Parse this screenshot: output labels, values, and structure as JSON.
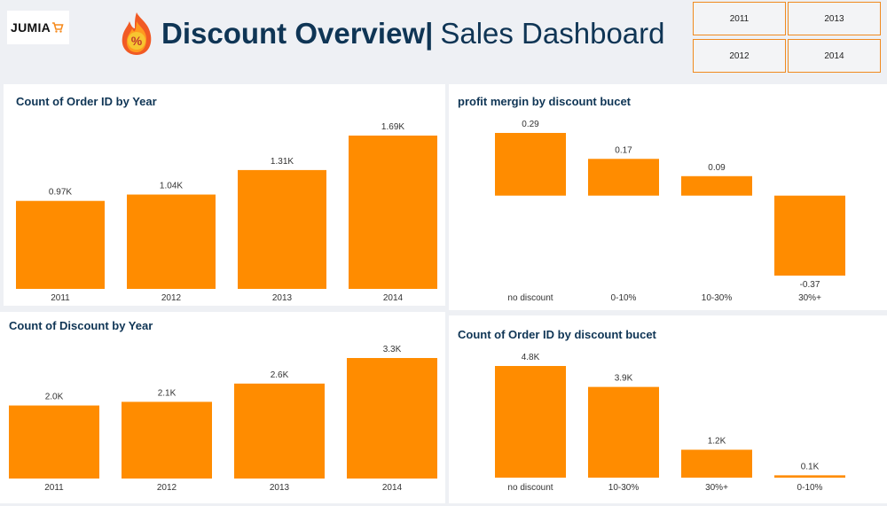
{
  "header": {
    "logo_text": "JUMIA",
    "title_main": "Discount Overview|",
    "title_sub": "Sales Dashboard"
  },
  "slicer": {
    "options": [
      "2011",
      "2013",
      "2012",
      "2014"
    ]
  },
  "colors": {
    "bar": "#ff8c00",
    "title": "#0f3555",
    "slicer_border": "#f08a1f"
  },
  "chart_data": [
    {
      "type": "bar",
      "title": "Count of Order ID by Year",
      "categories": [
        "2011",
        "2012",
        "2013",
        "2014"
      ],
      "values": [
        0.97,
        1.04,
        1.31,
        1.69
      ],
      "labels": [
        "0.97K",
        "1.04K",
        "1.31K",
        "1.69K"
      ],
      "ylim": [
        0,
        1.69
      ]
    },
    {
      "type": "bar",
      "title": "profit mergin by discount bucet",
      "categories": [
        "no discount",
        "0-10%",
        "10-30%",
        "30%+"
      ],
      "values": [
        0.29,
        0.17,
        0.09,
        -0.37
      ],
      "labels": [
        "0.29",
        "0.17",
        "0.09",
        "-0.37"
      ],
      "ylim": [
        -0.37,
        0.29
      ]
    },
    {
      "type": "bar",
      "title": "Count of Discount by Year",
      "categories": [
        "2011",
        "2012",
        "2013",
        "2014"
      ],
      "values": [
        2.0,
        2.1,
        2.6,
        3.3
      ],
      "labels": [
        "2.0K",
        "2.1K",
        "2.6K",
        "3.3K"
      ],
      "ylim": [
        0,
        3.3
      ]
    },
    {
      "type": "bar",
      "title": "Count of Order ID by discount bucet",
      "categories": [
        "no discount",
        "10-30%",
        "30%+",
        "0-10%"
      ],
      "values": [
        4.8,
        3.9,
        1.2,
        0.1
      ],
      "labels": [
        "4.8K",
        "3.9K",
        "1.2K",
        "0.1K"
      ],
      "ylim": [
        0,
        4.8
      ]
    }
  ]
}
